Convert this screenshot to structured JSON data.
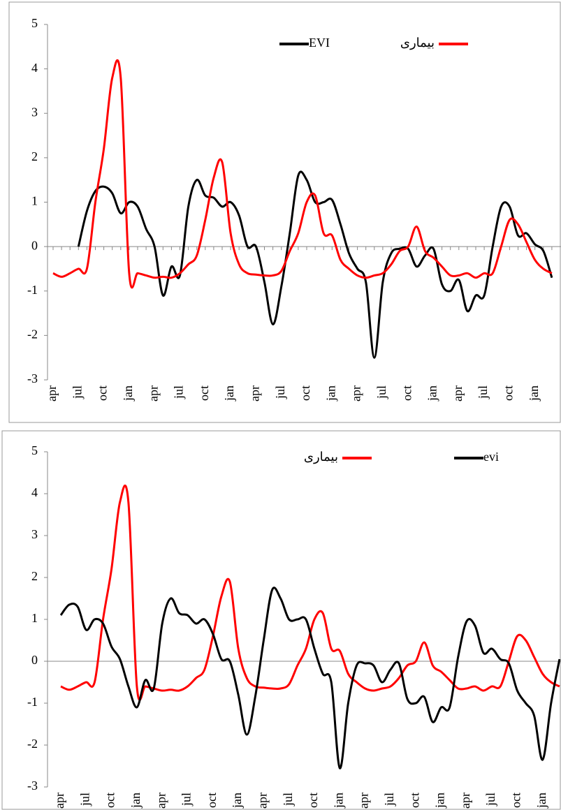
{
  "chart_data": [
    {
      "type": "line",
      "categories": [
        "apr",
        null,
        null,
        "jul",
        null,
        null,
        "oct",
        null,
        null,
        "jan",
        null,
        null,
        "apr",
        null,
        null,
        "jul",
        null,
        null,
        "oct",
        null,
        null,
        "jan",
        null,
        null,
        "apr",
        null,
        null,
        "jul",
        null,
        null,
        "oct",
        null,
        null,
        "jan",
        null,
        null,
        "apr",
        null,
        null,
        "jul",
        null,
        null,
        "oct",
        null,
        null,
        "jan",
        null,
        null,
        "apr",
        null,
        null,
        "jul",
        null,
        null,
        "oct",
        null,
        null,
        "jan",
        null,
        null
      ],
      "ylim": [
        -3,
        5
      ],
      "yticks": [
        -3,
        -2,
        -1,
        0,
        1,
        2,
        3,
        4,
        5
      ],
      "series": [
        {
          "name": "EVI",
          "color": "#000000",
          "values": [
            null,
            null,
            null,
            0,
            0.8,
            1.25,
            1.35,
            1.2,
            0.75,
            1.0,
            0.9,
            0.4,
            0.0,
            -1.1,
            -0.45,
            -0.65,
            0.9,
            1.5,
            1.15,
            1.1,
            0.9,
            1.0,
            0.7,
            0.0,
            0.0,
            -0.8,
            -1.75,
            -0.9,
            0.3,
            1.6,
            1.5,
            1.0,
            1.0,
            1.05,
            0.5,
            -0.15,
            -0.5,
            -0.8,
            -2.5,
            -0.8,
            -0.15,
            -0.05,
            -0.05,
            -0.45,
            -0.2,
            -0.05,
            -0.85,
            -1.0,
            -0.75,
            -1.45,
            -1.1,
            -1.1,
            0.0,
            0.9,
            0.9,
            0.25,
            0.3,
            0.05,
            -0.1,
            -0.7
          ]
        },
        {
          "name": "بیماری",
          "color": "#ff0000",
          "values": [
            -0.6,
            -0.68,
            -0.6,
            -0.5,
            -0.5,
            1.0,
            2.2,
            3.8,
            3.8,
            -0.6,
            -0.6,
            -0.65,
            -0.7,
            -0.68,
            -0.7,
            -0.6,
            -0.4,
            -0.2,
            0.6,
            1.55,
            1.9,
            0.3,
            -0.4,
            -0.6,
            -0.63,
            -0.65,
            -0.65,
            -0.55,
            -0.1,
            0.3,
            1.0,
            1.15,
            0.3,
            0.25,
            -0.3,
            -0.5,
            -0.65,
            -0.7,
            -0.65,
            -0.6,
            -0.4,
            -0.1,
            0.0,
            0.45,
            -0.1,
            -0.25,
            -0.45,
            -0.65,
            -0.65,
            -0.6,
            -0.7,
            -0.6,
            -0.6,
            0.0,
            0.6,
            0.5,
            0.1,
            -0.3,
            -0.5,
            -0.6
          ]
        }
      ]
    },
    {
      "type": "line",
      "categories": [
        "apr",
        null,
        null,
        "jul",
        null,
        null,
        "oct",
        null,
        null,
        "jan",
        null,
        null,
        "apr",
        null,
        null,
        "jul",
        null,
        null,
        "oct",
        null,
        null,
        "jan",
        null,
        null,
        "apr",
        null,
        null,
        "jul",
        null,
        null,
        "oct",
        null,
        null,
        "jan",
        null,
        null,
        "apr",
        null,
        null,
        "jul",
        null,
        null,
        "oct",
        null,
        null,
        "jan",
        null,
        null,
        "apr",
        null,
        null,
        "jul",
        null,
        null,
        "oct",
        null,
        null,
        "jan",
        null,
        null
      ],
      "ylim": [
        -3,
        5
      ],
      "yticks": [
        -3,
        -2,
        -1,
        0,
        1,
        2,
        3,
        4,
        5
      ],
      "series": [
        {
          "name": "بیماری",
          "color": "#ff0000",
          "values": [
            -0.6,
            -0.68,
            -0.6,
            -0.5,
            -0.5,
            1.0,
            2.2,
            3.8,
            3.8,
            -0.6,
            -0.6,
            -0.65,
            -0.7,
            -0.68,
            -0.7,
            -0.6,
            -0.4,
            -0.2,
            0.6,
            1.55,
            1.9,
            0.3,
            -0.4,
            -0.6,
            -0.63,
            -0.65,
            -0.65,
            -0.55,
            -0.1,
            0.3,
            1.0,
            1.15,
            0.3,
            0.25,
            -0.3,
            -0.5,
            -0.65,
            -0.7,
            -0.65,
            -0.6,
            -0.4,
            -0.1,
            0.0,
            0.45,
            -0.1,
            -0.25,
            -0.45,
            -0.65,
            -0.65,
            -0.6,
            -0.7,
            -0.6,
            -0.6,
            0.0,
            0.6,
            0.5,
            0.1,
            -0.3,
            -0.5,
            -0.6
          ]
        },
        {
          "name": "evi",
          "color": "#000000",
          "values": [
            1.1,
            1.35,
            1.3,
            0.75,
            1.0,
            0.9,
            0.35,
            0.05,
            -0.6,
            -1.1,
            -0.45,
            -0.65,
            0.9,
            1.5,
            1.15,
            1.1,
            0.9,
            1.0,
            0.65,
            0.05,
            0.0,
            -0.8,
            -1.75,
            -0.85,
            0.5,
            1.7,
            1.5,
            1.0,
            1.0,
            1.0,
            0.3,
            -0.3,
            -0.5,
            -2.55,
            -1.0,
            -0.1,
            -0.05,
            -0.1,
            -0.5,
            -0.2,
            -0.05,
            -0.9,
            -1.0,
            -0.85,
            -1.45,
            -1.1,
            -1.1,
            0.1,
            0.95,
            0.85,
            0.2,
            0.3,
            0.05,
            -0.05,
            -0.7,
            -1.0,
            -1.3,
            -2.35,
            -1.0,
            0.05
          ]
        }
      ]
    }
  ]
}
